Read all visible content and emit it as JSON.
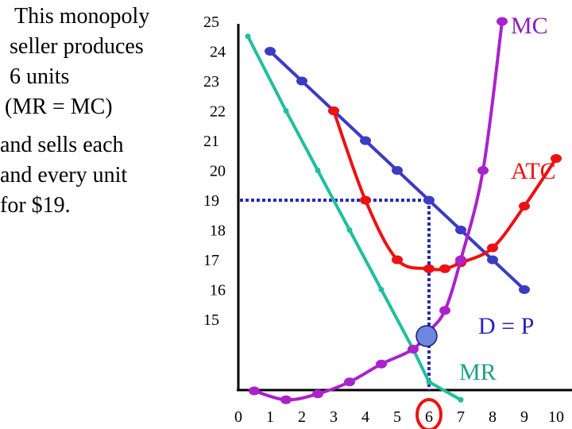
{
  "caption_lines": [
    "This monopoly",
    "seller produces",
    "6 units",
    "(MR = MC)",
    "and sells each",
    "and every unit",
    "for $19."
  ],
  "chart_data": {
    "type": "line",
    "title": "",
    "xlabel": "",
    "ylabel": "",
    "x_ticks": [
      0,
      1,
      2,
      3,
      4,
      5,
      6,
      7,
      8,
      9,
      10
    ],
    "y_ticks": [
      15,
      16,
      17,
      18,
      19,
      20,
      21,
      22,
      23,
      24,
      25
    ],
    "series": [
      {
        "name": "D = P",
        "color": "#3b3bc4",
        "x": [
          1,
          2,
          3,
          4,
          5,
          6,
          7,
          8,
          9
        ],
        "y": [
          24,
          23,
          22,
          21,
          20,
          19,
          18,
          17,
          16
        ]
      },
      {
        "name": "MR",
        "color": "#1fbf9f",
        "x": [
          0.3,
          1.5,
          2.5,
          3.5,
          4.5,
          5.5,
          6.0,
          7.0
        ],
        "y": [
          24.5,
          22,
          20,
          18,
          16,
          14,
          12.9,
          12.3
        ]
      },
      {
        "name": "ATC",
        "color": "#ee1111",
        "x": [
          3,
          4,
          5,
          6,
          6.5,
          7,
          8,
          9,
          10
        ],
        "y": [
          22,
          19,
          17,
          16.7,
          16.7,
          16.9,
          17.4,
          18.8,
          20.4
        ]
      },
      {
        "name": "MC",
        "color": "#aa22cc",
        "x": [
          0.5,
          1.5,
          2.5,
          3.5,
          4.5,
          5.5,
          6.0,
          6.5,
          7.0,
          7.7,
          8.3
        ],
        "y": [
          12.6,
          12.3,
          12.5,
          12.9,
          13.5,
          14.0,
          14.6,
          15.3,
          17.0,
          20.0,
          25.0
        ]
      }
    ],
    "equilibrium": {
      "quantity": 6,
      "price": 19,
      "mr_equals_mc": true
    },
    "label_d": "D = P",
    "label_mr": "MR",
    "label_atc": "ATC",
    "label_mc": "MC"
  }
}
